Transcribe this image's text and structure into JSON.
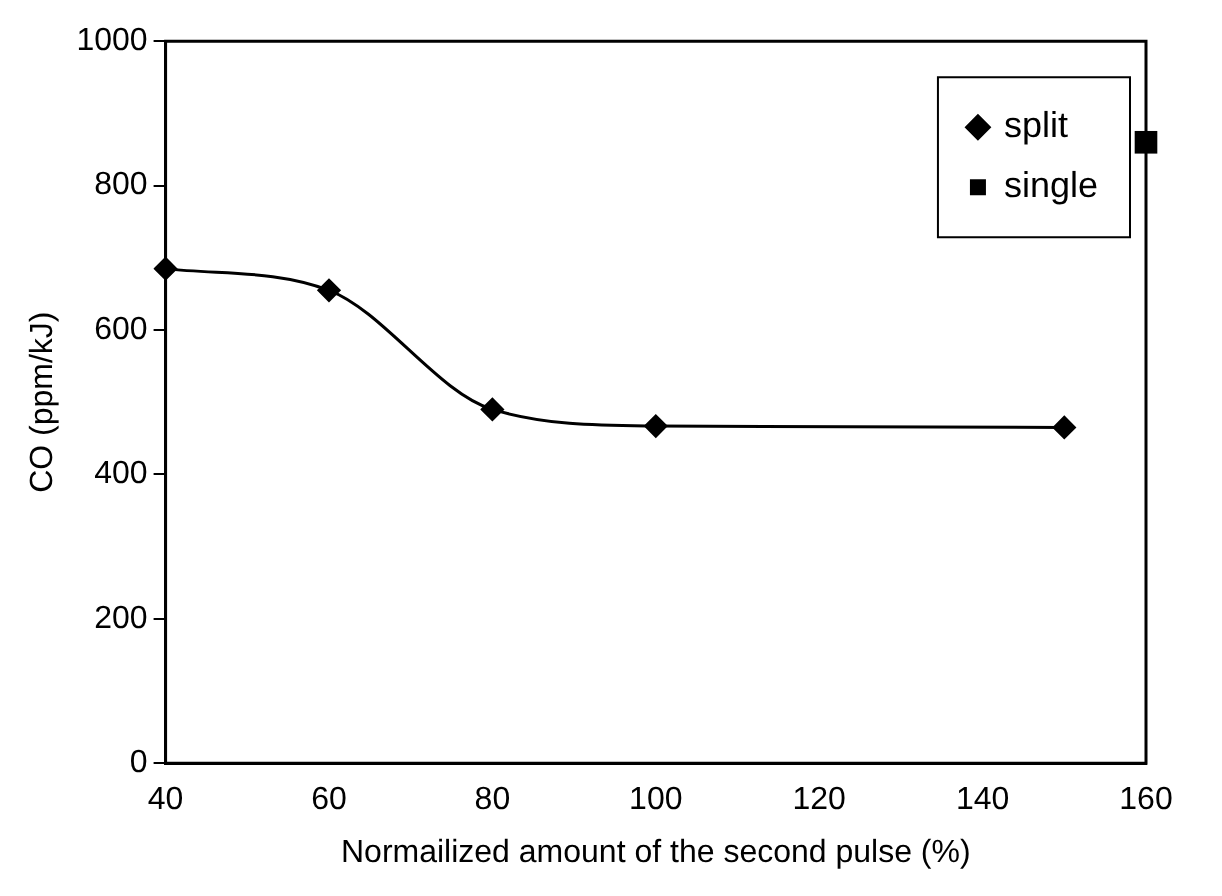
{
  "chart_data": {
    "type": "line",
    "xlabel": "Normailized amount of the second pulse (%)",
    "ylabel": "CO (ppm/kJ)",
    "xlim": [
      40,
      160
    ],
    "xticks": [
      40,
      60,
      80,
      100,
      120,
      140,
      160
    ],
    "ylim": [
      0,
      1000
    ],
    "yticks": [
      0,
      200,
      400,
      600,
      800,
      1000
    ],
    "grid": false,
    "legend": "top right",
    "series": [
      {
        "name": "split",
        "type": "line",
        "color": "#000000",
        "marker": "diamond",
        "x": [
          40,
          60,
          80,
          100,
          150
        ],
        "values": [
          685,
          655,
          490,
          467,
          465
        ]
      },
      {
        "name": "single",
        "type": "scatter",
        "color": "#000000",
        "marker": "square",
        "x": [
          160
        ],
        "values": [
          860
        ]
      }
    ]
  }
}
